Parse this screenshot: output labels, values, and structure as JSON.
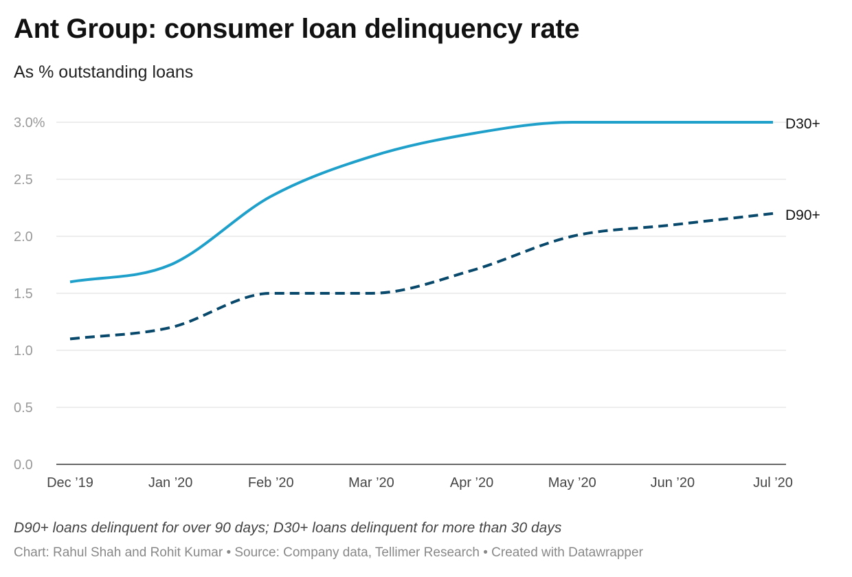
{
  "title": "Ant Group: consumer loan delinquency rate",
  "subtitle": "As % outstanding loans",
  "note": "D90+ loans delinquent for over 90 days; D30+ loans delinquent for more than 30 days",
  "credit": "Chart: Rahul Shah and Rohit Kumar • Source: Company data, Tellimer Research • Created with Datawrapper",
  "chart_data": {
    "type": "line",
    "x": [
      "Dec ’19",
      "Jan ’20",
      "Feb ’20",
      "Mar ’20",
      "Apr ’20",
      "May ’20",
      "Jun ’20",
      "Jul ’20"
    ],
    "series": [
      {
        "name": "D30+",
        "values": [
          1.6,
          1.75,
          2.35,
          2.7,
          2.9,
          3.0,
          3.0,
          3.0
        ],
        "color": "#1fa0cb",
        "dash": "solid"
      },
      {
        "name": "D90+",
        "values": [
          1.1,
          1.2,
          1.5,
          1.5,
          1.7,
          2.0,
          2.1,
          2.2
        ],
        "color": "#08486b",
        "dash": "dashed"
      }
    ],
    "y_ticks": [
      "0.0",
      "0.5",
      "1.0",
      "1.5",
      "2.0",
      "2.5",
      "3.0%"
    ],
    "ylim": [
      0,
      3.0
    ],
    "grid": true,
    "legend": "direct labels at line ends"
  }
}
